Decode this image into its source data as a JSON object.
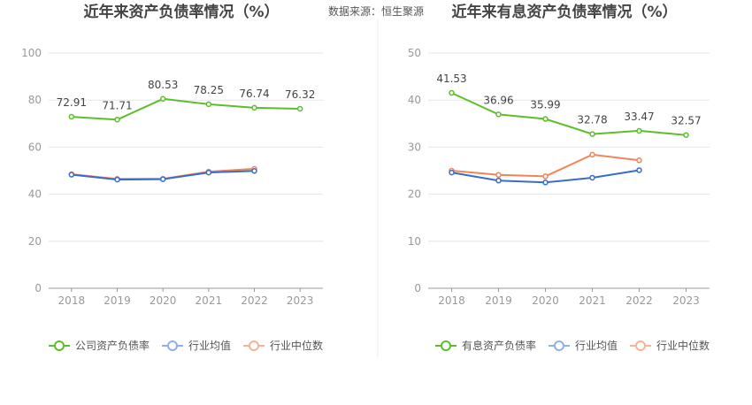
{
  "source_text": "数据来源：恒生聚源",
  "colors": {
    "company": "#5cbf2a",
    "avg": "#3a6bcc",
    "median": "#f0855a",
    "avg_legend": "#8fb0e8",
    "median_legend": "#f5b49a",
    "grid": "#e6e6e6",
    "axis": "#999999"
  },
  "chart_data": [
    {
      "type": "line",
      "title": "近年来资产负债率情况（%）",
      "categories": [
        "2018",
        "2019",
        "2020",
        "2021",
        "2022",
        "2023"
      ],
      "ylim": [
        0,
        100
      ],
      "yticks": [
        0,
        20,
        40,
        60,
        80,
        100
      ],
      "series": [
        {
          "key": "company",
          "name": "公司资产负债率",
          "values": [
            72.91,
            71.71,
            80.53,
            78.25,
            76.74,
            76.32
          ],
          "labels": [
            "72.91",
            "71.71",
            "80.53",
            "78.25",
            "76.74",
            "76.32"
          ]
        },
        {
          "key": "avg",
          "name": "行业均值",
          "values": [
            48.3,
            46.2,
            46.4,
            49.2,
            49.9,
            null
          ]
        },
        {
          "key": "median",
          "name": "行业中位数",
          "values": [
            48.5,
            46.5,
            46.5,
            49.6,
            50.8,
            null
          ]
        }
      ]
    },
    {
      "type": "line",
      "title": "近年来有息资产负债率情况（%）",
      "categories": [
        "2018",
        "2019",
        "2020",
        "2021",
        "2022",
        "2023"
      ],
      "ylim": [
        0,
        50
      ],
      "yticks": [
        0,
        10,
        20,
        30,
        40,
        50
      ],
      "series": [
        {
          "key": "company",
          "name": "有息资产负债率",
          "values": [
            41.53,
            36.96,
            35.99,
            32.78,
            33.47,
            32.57
          ],
          "labels": [
            "41.53",
            "36.96",
            "35.99",
            "32.78",
            "33.47",
            "32.57"
          ]
        },
        {
          "key": "avg",
          "name": "行业均值",
          "values": [
            24.6,
            22.9,
            22.5,
            23.5,
            25.1,
            null
          ]
        },
        {
          "key": "median",
          "name": "行业中位数",
          "values": [
            25.0,
            24.1,
            23.8,
            28.4,
            27.2,
            null
          ]
        }
      ]
    }
  ]
}
